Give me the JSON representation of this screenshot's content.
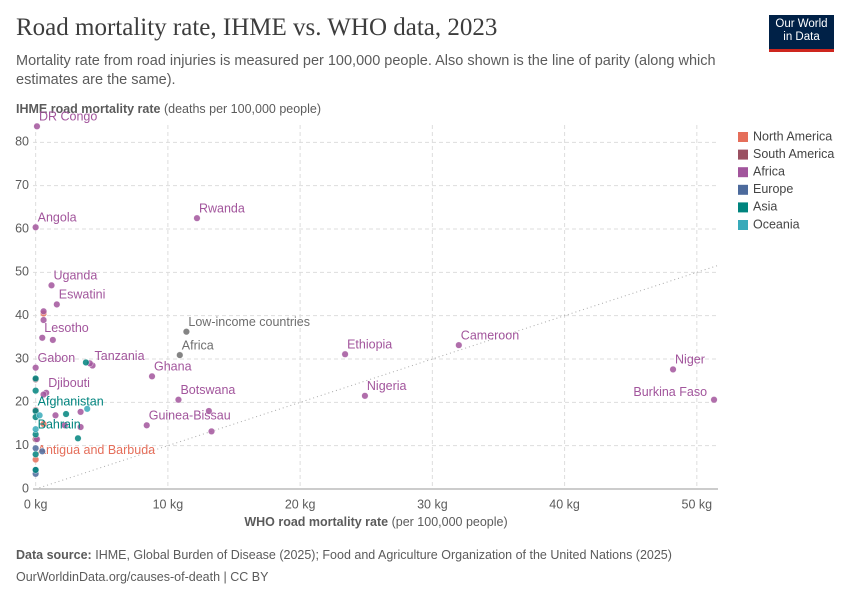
{
  "header": {
    "title": "Road mortality rate, IHME vs. WHO data, 2023",
    "subtitle": "Mortality rate from road injuries is measured per 100,000 people. Also shown is the line of parity (along which estimates are the same).",
    "logo": [
      "Our World",
      "in Data"
    ]
  },
  "chart_data": {
    "type": "scatter",
    "y_label": "IHME road mortality rate",
    "y_label_unit": "(deaths per 100,000 people)",
    "x_label": "WHO road mortality rate",
    "x_label_unit": "(per 100,000 people)",
    "xlim": [
      -0.2,
      51.6
    ],
    "ylim": [
      0,
      84
    ],
    "xticks": [
      {
        "value": 0,
        "label": "0 kg"
      },
      {
        "value": 10,
        "label": "10 kg"
      },
      {
        "value": 20,
        "label": "20 kg"
      },
      {
        "value": 30,
        "label": "30 kg"
      },
      {
        "value": 40,
        "label": "40 kg"
      },
      {
        "value": 50,
        "label": "50 kg"
      }
    ],
    "yticks": [
      0,
      10,
      20,
      30,
      40,
      50,
      60,
      70,
      80
    ],
    "grid": true,
    "parity_line": true,
    "legend": "right",
    "series": [
      {
        "name": "North America",
        "color": "#e56e5a",
        "x": [
          0,
          0.6,
          0.6
        ],
        "y": [
          6.8,
          15,
          40.5
        ],
        "labels": [
          "Antigua and Barbuda",
          null,
          null
        ]
      },
      {
        "name": "South America",
        "color": "#9a5061",
        "x": [
          0,
          0,
          0
        ],
        "y": [
          25.3,
          18.2,
          11.5
        ],
        "labels": [
          null,
          null,
          null
        ]
      },
      {
        "name": "Africa",
        "color": "#a2559c",
        "x": [
          0.1,
          0,
          12.2,
          1.2,
          1.6,
          0.6,
          0.6,
          0.5,
          1.3,
          0,
          4.3,
          4.1,
          8.8,
          23.4,
          32,
          48.2,
          51.3,
          24.9,
          10.8,
          0.8,
          0.6,
          8.4,
          13.1,
          13.3,
          1.5,
          3.4,
          3.4,
          2.2,
          0.1
        ],
        "y": [
          83.7,
          60.4,
          62.5,
          47,
          42.6,
          41,
          39,
          34.9,
          34.4,
          28,
          28.5,
          29,
          26,
          31.1,
          33.2,
          27.6,
          20.6,
          21.5,
          20.6,
          22.2,
          21.8,
          14.7,
          18,
          13.3,
          17,
          17.8,
          14.3,
          14.7,
          11.5
        ],
        "labels": [
          "DR Congo",
          "Angola",
          "Rwanda",
          "Uganda",
          "Eswatini",
          null,
          null,
          "Lesotho",
          null,
          "Gabon",
          "Tanzania",
          null,
          "Ghana",
          "Ethiopia",
          "Cameroon",
          "Niger",
          "Burkina Faso",
          "Nigeria",
          "Botswana",
          "Djibouti",
          null,
          "Guinea-Bissau",
          null,
          null,
          null,
          null,
          null,
          null,
          null
        ]
      },
      {
        "name": "Europe",
        "color": "#4c6a9c",
        "x": [
          0,
          0,
          0,
          0.5
        ],
        "y": [
          9.4,
          4.4,
          3.5,
          8.7
        ],
        "labels": [
          null,
          null,
          null,
          null
        ]
      },
      {
        "name": "Asia",
        "color": "#00847e",
        "x": [
          0,
          0,
          3.8,
          0,
          0,
          3.2,
          2.3,
          0,
          0,
          0
        ],
        "y": [
          18,
          12.6,
          29.2,
          22.7,
          25.5,
          11.7,
          17.3,
          16.6,
          8,
          4.4
        ],
        "labels": [
          "Afghanistan",
          "Bahrain",
          null,
          null,
          null,
          null,
          null,
          null,
          null,
          null
        ]
      },
      {
        "name": "Oceania",
        "color": "#38aaba",
        "x": [
          0,
          0.3,
          3.9
        ],
        "y": [
          13.8,
          17,
          18.5
        ],
        "labels": [
          null,
          null,
          null
        ]
      }
    ],
    "aggregates": {
      "color": "#6e6e6e",
      "x": [
        11.4,
        10.9
      ],
      "y": [
        36.3,
        30.9
      ],
      "labels": [
        "Low-income countries",
        "Africa"
      ]
    }
  },
  "footer": {
    "source_label": "Data source:",
    "source": "IHME, Global Burden of Disease (2025); Food and Agriculture Organization of the United Nations (2025)",
    "url": "OurWorldinData.org/causes-of-death | CC BY"
  }
}
